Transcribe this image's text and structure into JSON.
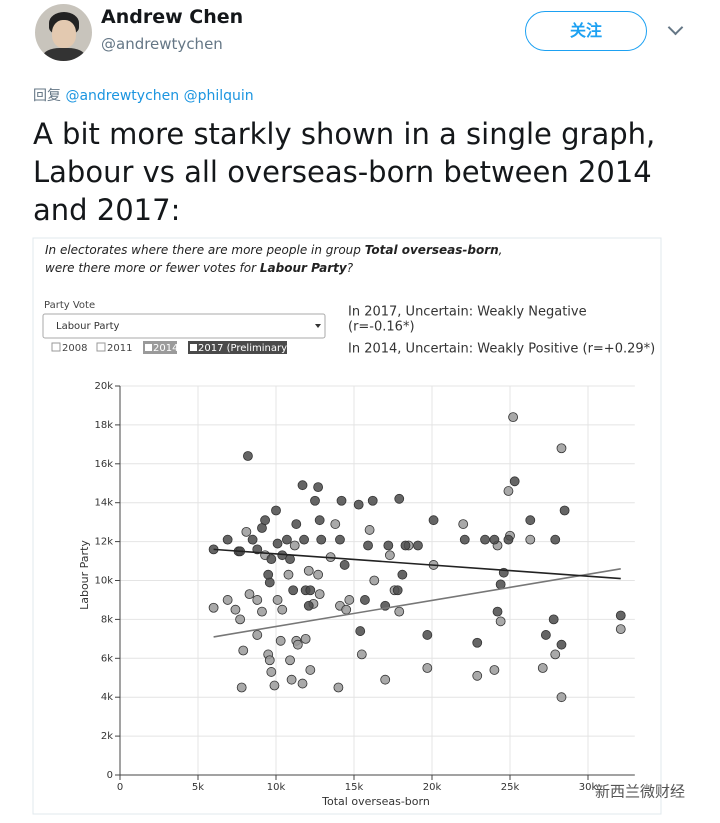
{
  "tweet": {
    "display_name": "Andrew Chen",
    "handle": "@andrewtychen",
    "follow_button": "关注",
    "reply_label": "回复",
    "reply_to": [
      "@andrewtychen",
      "@philquin"
    ],
    "text": "A bit more starkly shown in a single graph, Labour vs all overseas-born between 2014 and 2017:"
  },
  "embed": {
    "question": [
      [
        "In electorates where there are more people in group ",
        "Total overseas-born",
        ","
      ],
      [
        "were there more or fewer votes for ",
        "Labour Party",
        "?"
      ]
    ],
    "party_vote_label": "Party Vote",
    "party_select": "Labour Party",
    "unchecked_years": [
      "2008",
      "2011"
    ],
    "stats": [
      "In 2017, Uncertain: Weakly Negative",
      "(r=-0.16*)",
      "In 2014, Uncertain: Weakly Positive (r=+0.29*)"
    ],
    "watermark": "新西兰微财经"
  },
  "chart_data": {
    "type": "scatter",
    "x_label": "Total overseas-born",
    "y_label": "Labour Party",
    "xlim": [
      0,
      33000
    ],
    "ylim": [
      0,
      20000
    ],
    "grid": true,
    "xticks": [
      0,
      {
        "value": 5000,
        "label": "5k"
      },
      {
        "value": 10000,
        "label": "10k"
      },
      {
        "value": 15000,
        "label": "15k"
      },
      {
        "value": 20000,
        "label": "20k"
      },
      {
        "value": 25000,
        "label": "25k"
      },
      {
        "value": 30000,
        "label": "30k"
      }
    ],
    "yticks": [
      0,
      {
        "value": 2000,
        "label": "2k"
      },
      {
        "value": 4000,
        "label": "4k"
      },
      {
        "value": 6000,
        "label": "6k"
      },
      {
        "value": 8000,
        "label": "8k"
      },
      {
        "value": 10000,
        "label": "10k"
      },
      {
        "value": 12000,
        "label": "12k"
      },
      {
        "value": 14000,
        "label": "14k"
      },
      {
        "value": 16000,
        "label": "16k"
      },
      {
        "value": 18000,
        "label": "18k"
      },
      {
        "value": 20000,
        "label": "20k"
      }
    ],
    "series": [
      {
        "name": "2014",
        "color": "#9a9a9a",
        "x": [
          6000,
          6900,
          7400,
          7700,
          7800,
          7900,
          8100,
          8300,
          8800,
          8800,
          9100,
          9300,
          9500,
          9600,
          9700,
          9900,
          10100,
          10300,
          10400,
          10800,
          10900,
          11000,
          11200,
          11300,
          11400,
          11700,
          11900,
          12100,
          12200,
          12400,
          12700,
          12800,
          13500,
          13800,
          14000,
          14100,
          14500,
          14700,
          15500,
          16000,
          16300,
          17000,
          17300,
          17600,
          17900,
          18500,
          19700,
          20100,
          22000,
          22900,
          24000,
          24200,
          24400,
          24900,
          25000,
          25200,
          26300,
          27100,
          27900,
          28300,
          28300,
          32100
        ],
        "values": [
          8600,
          9000,
          8500,
          8000,
          4500,
          6400,
          12500,
          9300,
          9000,
          7200,
          8400,
          11300,
          6200,
          5900,
          5300,
          4600,
          9000,
          6900,
          8500,
          10300,
          5900,
          4900,
          11800,
          6900,
          6700,
          4700,
          7000,
          10500,
          5400,
          8800,
          10300,
          9300,
          11200,
          12900,
          4500,
          8700,
          8500,
          9000,
          6200,
          12600,
          10000,
          4900,
          11300,
          9500,
          8400,
          11800,
          5500,
          10800,
          12900,
          5100,
          5400,
          11800,
          7900,
          14600,
          12300,
          18400,
          12100,
          5500,
          6200,
          16800,
          4000,
          7500
        ],
        "trend": {
          "x": [
            6000,
            32100
          ],
          "values": [
            7100,
            10600
          ]
        }
      },
      {
        "name": "2017 (Preliminary)",
        "color": "#4a4a4a",
        "x": [
          6000,
          6900,
          7600,
          7700,
          8200,
          8500,
          8800,
          9100,
          9300,
          9600,
          9500,
          9700,
          10000,
          10100,
          10400,
          10700,
          10900,
          11100,
          11300,
          11700,
          11800,
          11900,
          12100,
          12200,
          12500,
          12700,
          12800,
          12900,
          14100,
          14200,
          14400,
          15300,
          15400,
          15700,
          15900,
          16200,
          17000,
          17200,
          17800,
          17900,
          18100,
          18300,
          19100,
          19700,
          20100,
          22100,
          22900,
          23400,
          24000,
          24200,
          24400,
          24600,
          24900,
          25300,
          26300,
          27900,
          27300,
          27800,
          28300,
          28500,
          32100
        ],
        "values": [
          11600,
          12100,
          11500,
          11500,
          16400,
          12100,
          11600,
          12700,
          13100,
          9900,
          10300,
          11100,
          13600,
          11900,
          11300,
          12100,
          11100,
          9500,
          12900,
          14900,
          12100,
          9500,
          8700,
          9500,
          14100,
          14800,
          13100,
          12100,
          12100,
          14100,
          10800,
          13900,
          7400,
          9000,
          11800,
          14100,
          8700,
          11800,
          9500,
          14200,
          10300,
          11800,
          11800,
          7200,
          13100,
          12100,
          6800,
          12100,
          12100,
          8400,
          9800,
          10400,
          12100,
          15100,
          13100,
          12100,
          7200,
          8000,
          6700,
          13600,
          8200
        ],
        "trend": {
          "x": [
            6000,
            32100
          ],
          "values": [
            11600,
            10100
          ]
        }
      }
    ]
  }
}
